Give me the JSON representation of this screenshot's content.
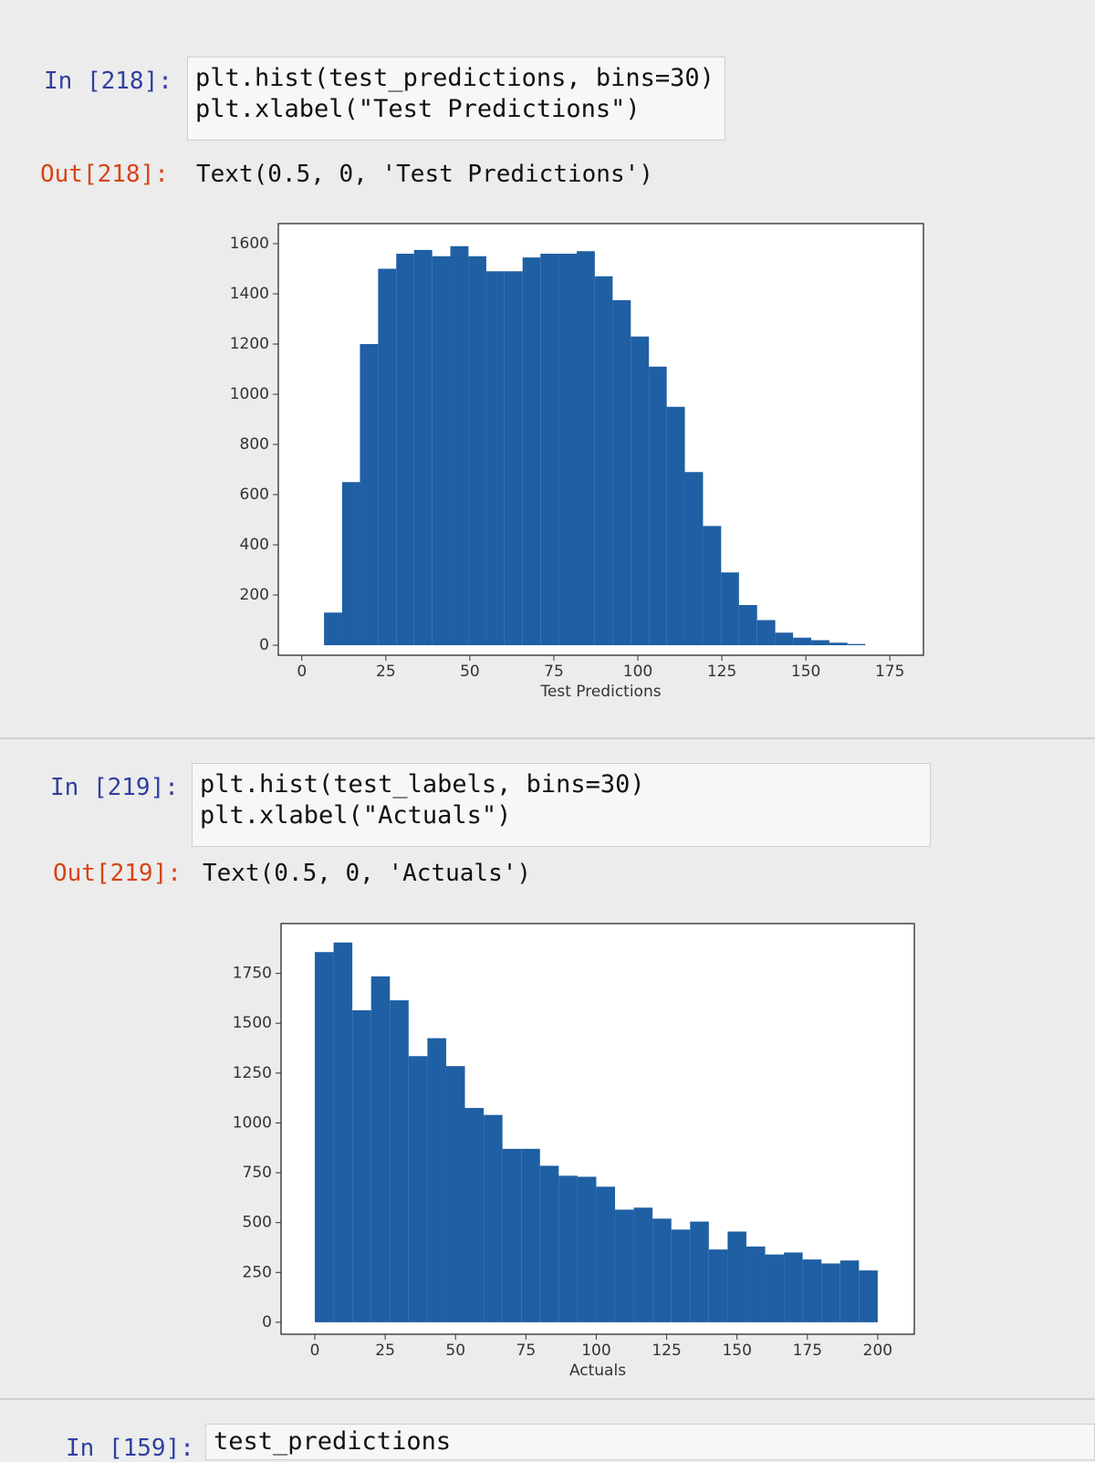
{
  "cells": [
    {
      "in_prompt": "In [218]:",
      "code": [
        "plt.hist(test_predictions, bins=30)",
        "plt.xlabel(\"Test Predictions\")"
      ],
      "out_prompt": "Out[218]:",
      "output": "Text(0.5, 0, 'Test Predictions')"
    },
    {
      "in_prompt": "In [219]:",
      "code": [
        "plt.hist(test_labels, bins=30)",
        "plt.xlabel(\"Actuals\")"
      ],
      "out_prompt": "Out[219]:",
      "output": "Text(0.5, 0, 'Actuals')"
    },
    {
      "in_prompt": "In [159]:",
      "code": [
        "test_predictions"
      ]
    }
  ],
  "chart_data": [
    {
      "type": "histogram",
      "xlabel": "Test Predictions",
      "color": "#1f5fa3",
      "bins": [
        6.6,
        12.0,
        17.3,
        22.7,
        28.1,
        33.4,
        38.8,
        44.2,
        49.6,
        54.9,
        60.3,
        65.7,
        71.0,
        76.4,
        81.8,
        87.2,
        92.5,
        97.9,
        103.3,
        108.6,
        114.0,
        119.4,
        124.8,
        130.1,
        135.5,
        140.9,
        146.2,
        151.6,
        157.0,
        162.4,
        167.7
      ],
      "values": [
        130,
        650,
        1200,
        1500,
        1560,
        1575,
        1550,
        1590,
        1550,
        1490,
        1490,
        1545,
        1560,
        1560,
        1570,
        1470,
        1375,
        1230,
        1110,
        950,
        690,
        475,
        290,
        160,
        100,
        50,
        30,
        20,
        10,
        5
      ],
      "xlim": [
        -7,
        185
      ],
      "xticks": [
        0,
        25,
        50,
        75,
        100,
        125,
        150,
        175
      ],
      "ylim": [
        -40,
        1680
      ],
      "yticks": [
        0,
        200,
        400,
        600,
        800,
        1000,
        1200,
        1400,
        1600
      ]
    },
    {
      "type": "histogram",
      "xlabel": "Actuals",
      "color": "#1f5fa3",
      "bins": [
        0,
        6.67,
        13.33,
        20,
        26.67,
        33.33,
        40,
        46.67,
        53.33,
        60,
        66.67,
        73.33,
        80,
        86.67,
        93.33,
        100,
        106.67,
        113.33,
        120,
        126.67,
        133.33,
        140,
        146.67,
        153.33,
        160,
        166.67,
        173.33,
        180,
        186.67,
        193.33,
        200
      ],
      "values": [
        1857,
        1905,
        1565,
        1735,
        1615,
        1335,
        1425,
        1285,
        1075,
        1040,
        870,
        870,
        785,
        735,
        730,
        680,
        565,
        575,
        520,
        465,
        505,
        365,
        455,
        380,
        340,
        350,
        315,
        295,
        310,
        260
      ],
      "xlim": [
        -12,
        213
      ],
      "xticks": [
        0,
        25,
        50,
        75,
        100,
        125,
        150,
        175,
        200
      ],
      "ylim": [
        -60,
        2000
      ],
      "yticks": [
        0,
        250,
        500,
        750,
        1000,
        1250,
        1500,
        1750
      ]
    }
  ]
}
